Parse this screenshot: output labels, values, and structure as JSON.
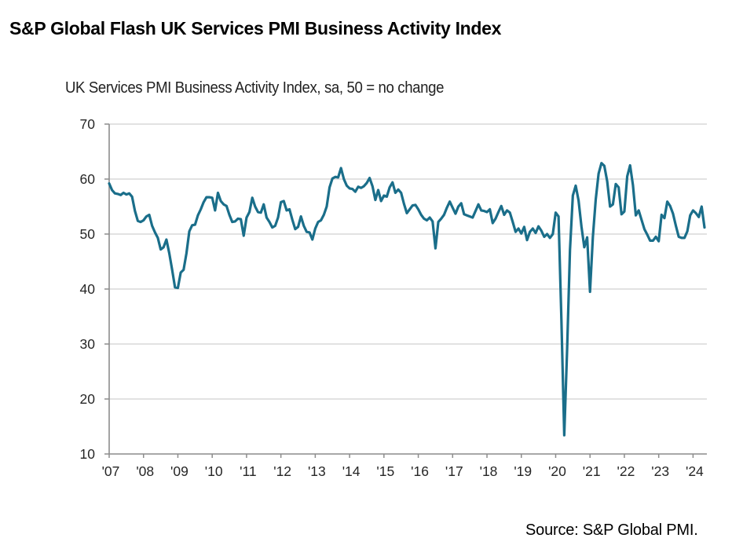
{
  "header": {
    "title": "S&P Global Flash UK Services PMI Business Activity Index"
  },
  "footer": {
    "source": "Source: S&P Global PMI."
  },
  "colors": {
    "series_line": "#1a6e8a",
    "gridline": "#d9d9d9",
    "axis": "#8c8c8c"
  },
  "chart_data": {
    "type": "line",
    "title": "S&P Global Flash UK Services PMI Business Activity Index",
    "subtitle": "UK Services PMI Business Activity Index, sa, 50 = no change",
    "xlabel": "",
    "ylabel": "",
    "frequency": "monthly",
    "x_start": "2007-01",
    "x_end": "2024-05",
    "ylim": [
      10,
      70
    ],
    "yticks": [
      10,
      20,
      30,
      40,
      50,
      60,
      70
    ],
    "ytick_labels": [
      "10",
      "20",
      "30",
      "40",
      "50",
      "60",
      "70"
    ],
    "xtick_years": [
      2007,
      2008,
      2009,
      2010,
      2011,
      2012,
      2013,
      2014,
      2015,
      2016,
      2017,
      2018,
      2019,
      2020,
      2021,
      2022,
      2023,
      2024
    ],
    "xtick_labels": [
      "'07",
      "'08",
      "'09",
      "'10",
      "'11",
      "'12",
      "'13",
      "'14",
      "'15",
      "'16",
      "'17",
      "'18",
      "'19",
      "'20",
      "'21",
      "'22",
      "'23",
      "'24"
    ],
    "grid": "horizontal",
    "legend": "none",
    "source": "Source: S&P Global PMI.",
    "series": [
      {
        "name": "UK Services PMI Business Activity Index",
        "values": [
          59.2,
          58.0,
          57.4,
          57.3,
          57.1,
          57.5,
          57.2,
          57.4,
          56.8,
          54.2,
          52.4,
          52.2,
          52.5,
          53.2,
          53.5,
          51.5,
          50.3,
          49.3,
          47.2,
          47.6,
          49.0,
          46.5,
          43.5,
          40.3,
          40.2,
          43.0,
          43.5,
          46.5,
          50.5,
          51.6,
          51.7,
          53.4,
          54.5,
          55.8,
          56.7,
          56.7,
          56.6,
          54.3,
          57.5,
          56.0,
          55.4,
          55.1,
          53.5,
          52.2,
          52.3,
          52.8,
          52.7,
          49.7,
          53.0,
          54.0,
          56.6,
          55.0,
          54.0,
          53.9,
          55.4,
          53.0,
          52.2,
          51.2,
          51.5,
          53.0,
          55.8,
          56.0,
          54.3,
          54.5,
          52.6,
          50.9,
          51.3,
          53.2,
          51.5,
          50.4,
          50.3,
          49.0,
          51.0,
          52.2,
          52.5,
          53.5,
          55.0,
          58.5,
          60.1,
          60.4,
          60.3,
          62.0,
          60.0,
          58.8,
          58.3,
          58.2,
          57.7,
          58.6,
          58.4,
          58.7,
          59.3,
          60.2,
          58.7,
          56.2,
          58.0,
          56.0,
          57.0,
          56.8,
          58.5,
          59.4,
          57.5,
          58.1,
          57.5,
          55.5,
          53.8,
          54.5,
          55.2,
          55.3,
          54.5,
          53.5,
          52.8,
          52.5,
          53.0,
          52.3,
          47.4,
          52.2,
          52.8,
          53.5,
          54.8,
          55.9,
          54.8,
          53.7,
          55.0,
          55.6,
          53.6,
          53.4,
          53.2,
          53.0,
          54.2,
          55.4,
          54.3,
          54.2,
          54.0,
          54.5,
          52.0,
          52.8,
          54.0,
          55.1,
          53.5,
          54.3,
          53.9,
          52.2,
          50.4,
          51.0,
          50.1,
          51.3,
          48.9,
          50.4,
          51.0,
          50.2,
          51.4,
          50.6,
          49.5,
          50.0,
          49.3,
          50.0,
          53.9,
          53.2,
          34.5,
          13.4,
          29.0,
          47.1,
          57.0,
          58.8,
          56.1,
          51.4,
          47.6,
          49.4,
          39.5,
          49.5,
          56.3,
          61.0,
          62.9,
          62.4,
          59.6,
          55.0,
          55.4,
          59.1,
          58.5,
          53.6,
          54.1,
          60.5,
          62.5,
          58.9,
          53.4,
          54.3,
          52.6,
          50.9,
          49.9,
          48.8,
          48.8,
          49.5,
          48.7,
          53.5,
          52.9,
          55.9,
          55.1,
          53.7,
          51.5,
          49.5,
          49.3,
          49.3,
          50.5,
          53.4,
          54.3,
          53.8,
          53.1,
          55.0,
          51.2
        ]
      }
    ]
  }
}
